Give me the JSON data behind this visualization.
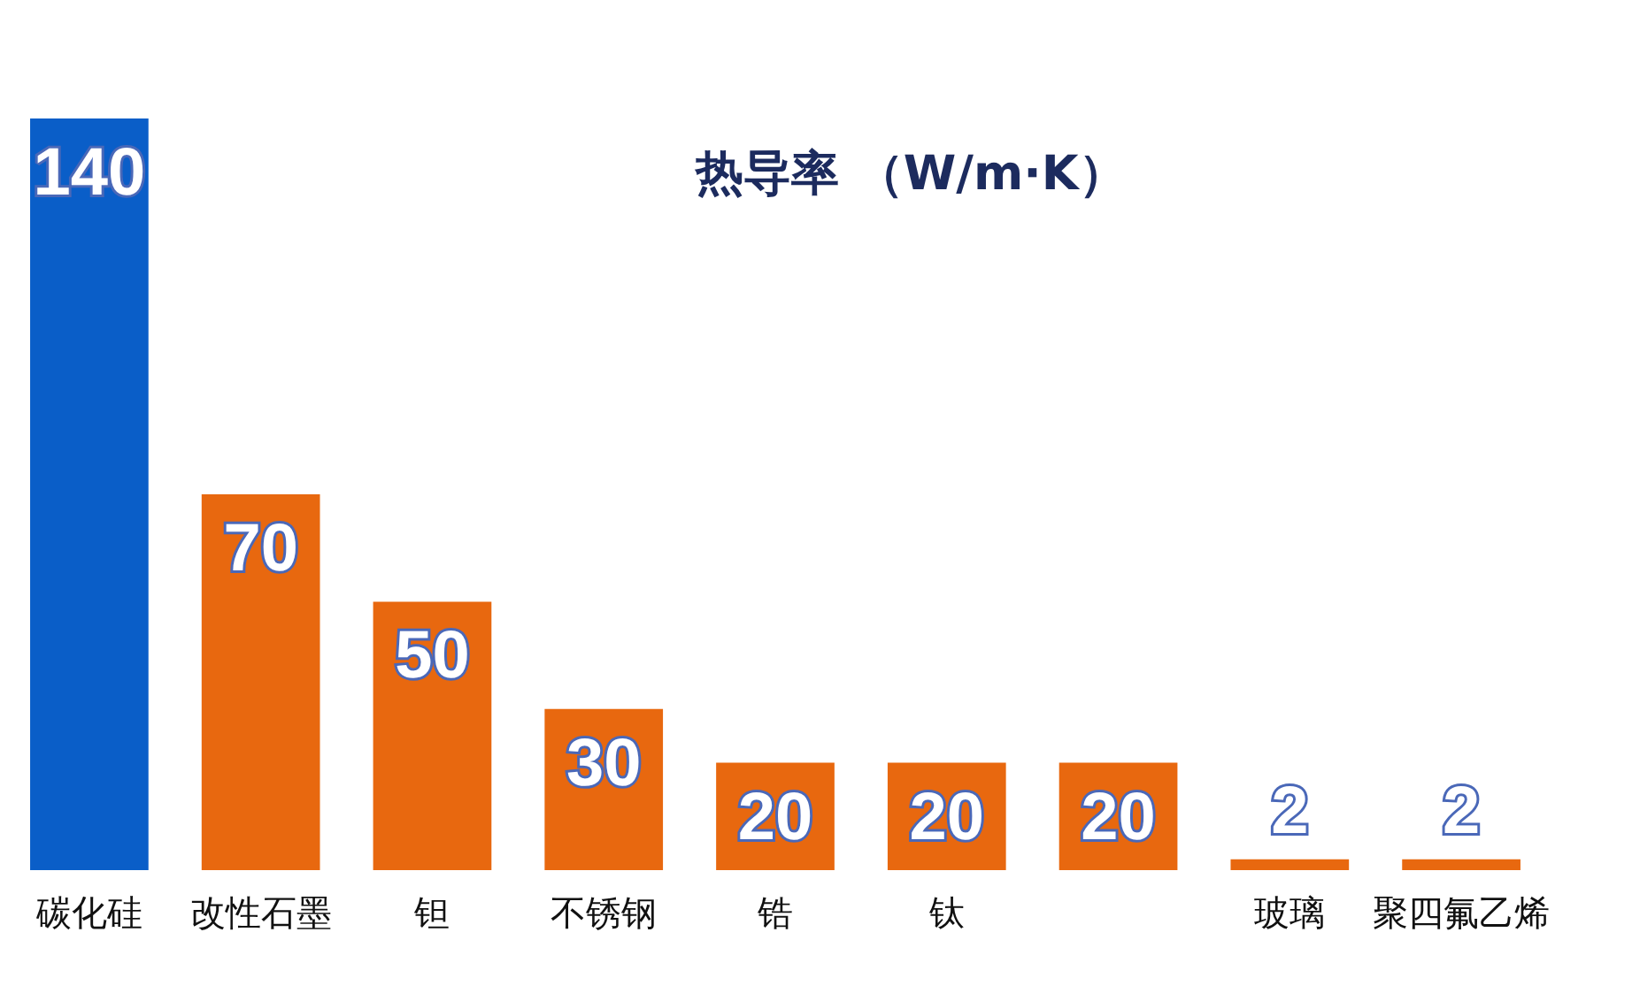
{
  "chart_data": {
    "type": "bar",
    "title": "热导率 （W/m·K）",
    "categories": [
      "碳化硅",
      "改性石墨",
      "钽",
      "不锈钢",
      "锆",
      "钛",
      null,
      "玻璃",
      "聚四氟乙烯"
    ],
    "values": [
      140,
      70,
      50,
      30,
      20,
      20,
      20,
      2,
      2
    ],
    "colors": [
      "#0a5ec8",
      "#e8680f",
      "#e8680f",
      "#e8680f",
      "#e8680f",
      "#e8680f",
      "#e8680f",
      "#e8680f",
      "#e8680f"
    ],
    "data_labels": true
  }
}
